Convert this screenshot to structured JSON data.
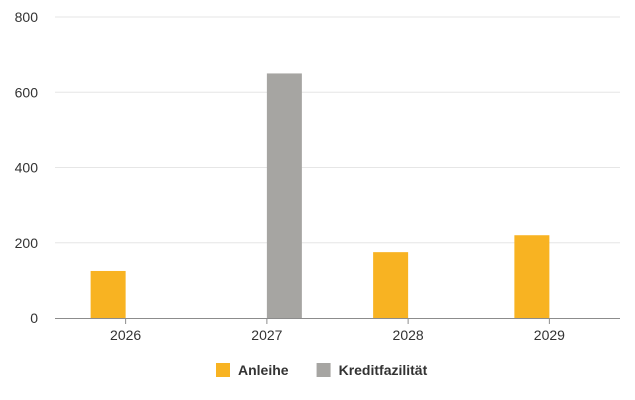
{
  "chart_data": {
    "type": "bar",
    "categories": [
      "2026",
      "2027",
      "2028",
      "2029"
    ],
    "series": [
      {
        "name": "Anleihe",
        "color": "#f8b322",
        "values": [
          125,
          0,
          175,
          220
        ]
      },
      {
        "name": "Kreditfazilität",
        "color": "#a6a5a2",
        "values": [
          0,
          650,
          0,
          0
        ]
      }
    ],
    "title": "",
    "xlabel": "",
    "ylabel": "",
    "ylim": [
      0,
      800
    ],
    "yticks": [
      "0",
      "200",
      "400",
      "600",
      "800"
    ],
    "grid": true,
    "legend_position": "bottom-center"
  }
}
